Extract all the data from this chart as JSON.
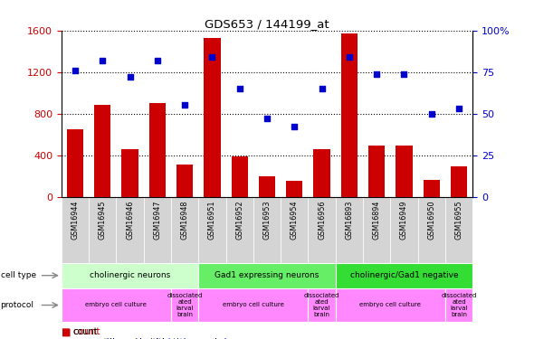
{
  "title": "GDS653 / 144199_at",
  "samples": [
    "GSM16944",
    "GSM16945",
    "GSM16946",
    "GSM16947",
    "GSM16948",
    "GSM16951",
    "GSM16952",
    "GSM16953",
    "GSM16954",
    "GSM16956",
    "GSM16893",
    "GSM16894",
    "GSM16949",
    "GSM16950",
    "GSM16955"
  ],
  "counts": [
    650,
    880,
    460,
    900,
    310,
    1530,
    390,
    195,
    155,
    460,
    1570,
    490,
    490,
    165,
    290
  ],
  "percentile": [
    76,
    82,
    72,
    82,
    55,
    84,
    65,
    47,
    42,
    65,
    84,
    74,
    74,
    50,
    53
  ],
  "ylim_left": [
    0,
    1600
  ],
  "ylim_right": [
    0,
    100
  ],
  "yticks_left": [
    0,
    400,
    800,
    1200,
    1600
  ],
  "yticks_right": [
    0,
    25,
    50,
    75,
    100
  ],
  "bar_color": "#cc0000",
  "dot_color": "#0000cc",
  "cell_type_groups": [
    {
      "label": "cholinergic neurons",
      "start": 0,
      "end": 4,
      "color": "#ccffcc"
    },
    {
      "label": "Gad1 expressing neurons",
      "start": 5,
      "end": 9,
      "color": "#66ee66"
    },
    {
      "label": "cholinergic/Gad1 negative",
      "start": 10,
      "end": 14,
      "color": "#33dd33"
    }
  ],
  "protocol_groups": [
    {
      "label": "embryo cell culture",
      "start": 0,
      "end": 3,
      "color": "#ff88ff"
    },
    {
      "label": "dissociated\nated\nlarval\nbrain",
      "start": 4,
      "end": 4,
      "color": "#ff88ff"
    },
    {
      "label": "embryo cell culture",
      "start": 5,
      "end": 8,
      "color": "#ff88ff"
    },
    {
      "label": "dissociated\nated\nlarval\nbrain",
      "start": 9,
      "end": 9,
      "color": "#ff88ff"
    },
    {
      "label": "embryo cell culture",
      "start": 10,
      "end": 13,
      "color": "#ff88ff"
    },
    {
      "label": "dissociated\nated\nlarval\nbrain",
      "start": 14,
      "end": 14,
      "color": "#ff88ff"
    }
  ],
  "bg_color": "#ffffff",
  "tick_label_color_left": "#cc0000",
  "tick_label_color_right": "#0000cc",
  "xlabel_bg": "#d0d0d0",
  "cell_type_label_color": "#888888",
  "protocol_label_color": "#888888"
}
